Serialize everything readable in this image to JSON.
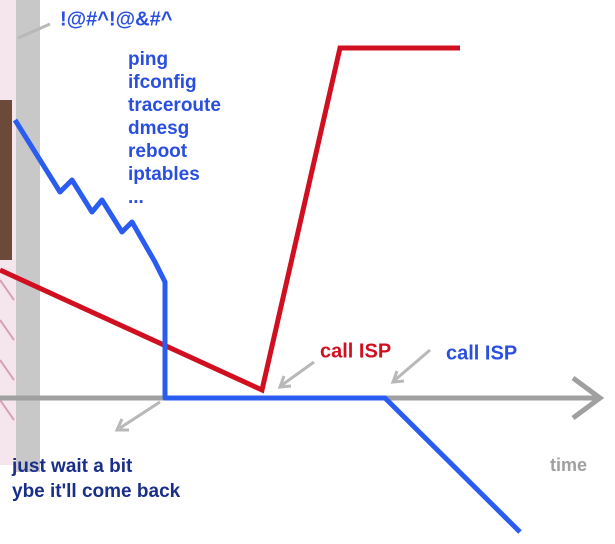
{
  "annotations": {
    "exclamation": "!@#^!@&#^",
    "commands": [
      "ping",
      "ifconfig",
      "traceroute",
      "dmesg",
      "reboot",
      "iptables",
      "..."
    ],
    "red_label": "call ISP",
    "blue_label": "call ISP",
    "axis_label": "time",
    "caption": [
      "just wait a bit",
      "ybe it'll come back"
    ]
  }
}
